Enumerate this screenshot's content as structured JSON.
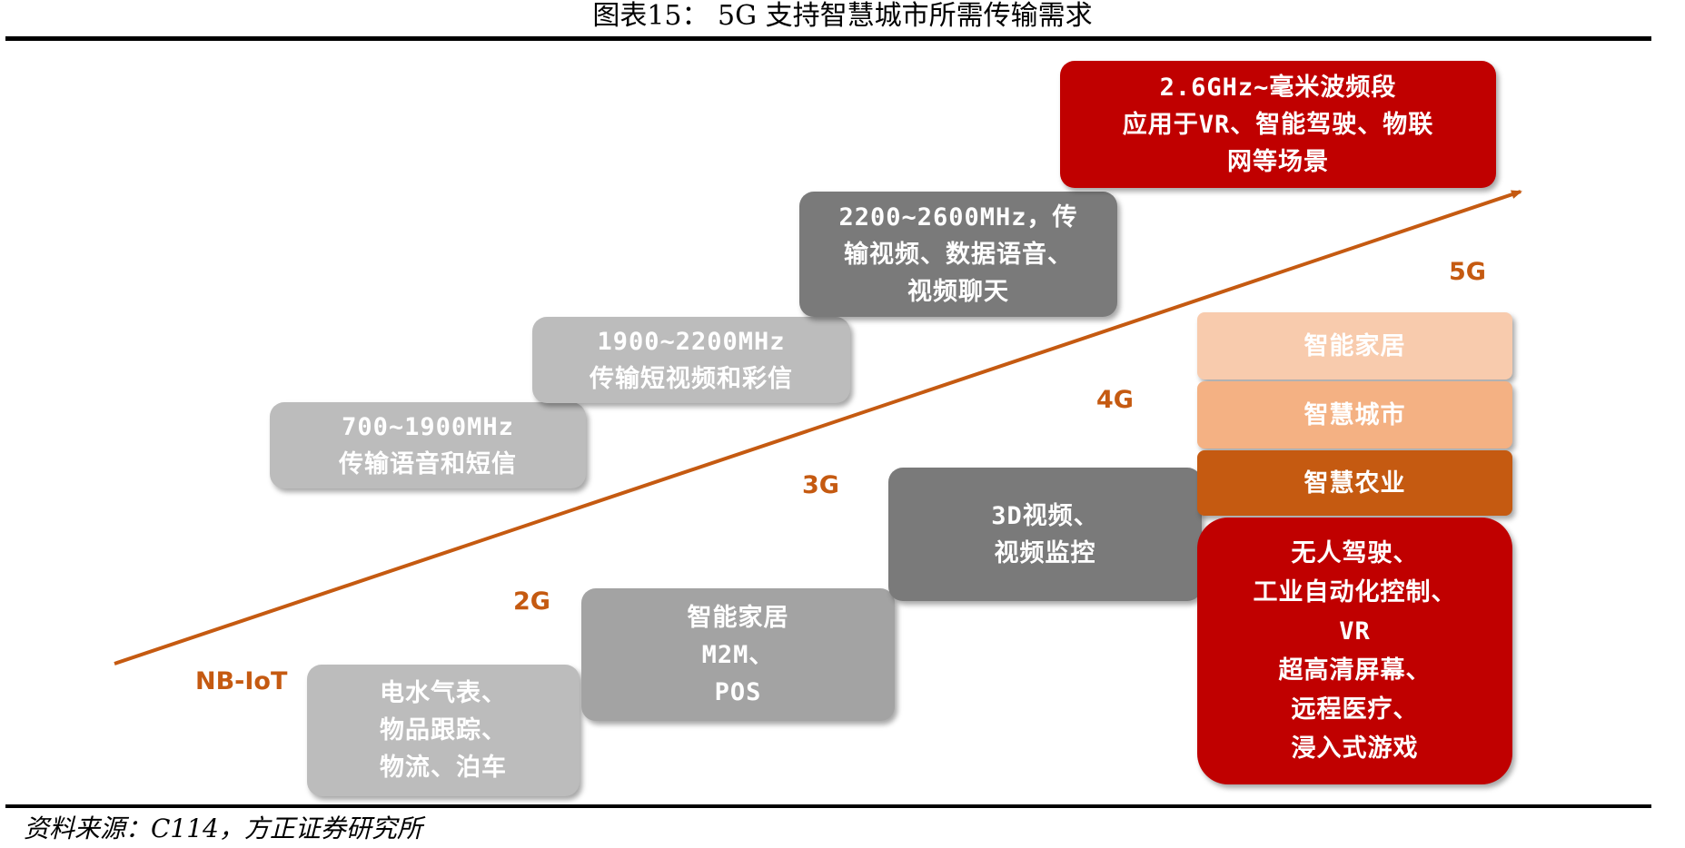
{
  "title": "图表15：  5G 支持智慧城市所需传输需求",
  "source": "资料来源：C114，方正证券研究所",
  "colors": {
    "accent_arrow": "#c55a11",
    "red": "#c00000",
    "gray_light": "#bcbcbc",
    "gray_mid": "#a3a3a3",
    "gray_dark": "#7a7a7a",
    "peach_light": "#f8cbad",
    "peach": "#f4b183",
    "rust": "#c55a11"
  },
  "generations": {
    "nbiot": "NB-IoT",
    "g2": "2G",
    "g3": "3G",
    "g4": "4G",
    "g5": "5G"
  },
  "bands": {
    "band_700": "700~1900MHz\n传输语音和短信",
    "band_1900": "1900~2200MHz\n传输短视频和彩信",
    "band_2200": "2200~2600MHz，传\n输视频、数据语音、\n视频聊天",
    "band_5g": "2.6GHz~毫米波频段\n应用于VR、智能驾驶、物联\n网等场景"
  },
  "applications": {
    "nbiot_apps": "电水气表、\n物品跟踪、\n物流、泊车",
    "g2_apps": "智能家居\nM2M、\nPOS",
    "g3_apps": "3D视频、\n视频监控",
    "smart_home": "智能家居",
    "smart_city": "智慧城市",
    "smart_agri": "智慧农业",
    "g5_apps": "无人驾驶、\n工业自动化控制、\nVR\n超高清屏幕、\n远程医疗、\n浸入式游戏"
  }
}
